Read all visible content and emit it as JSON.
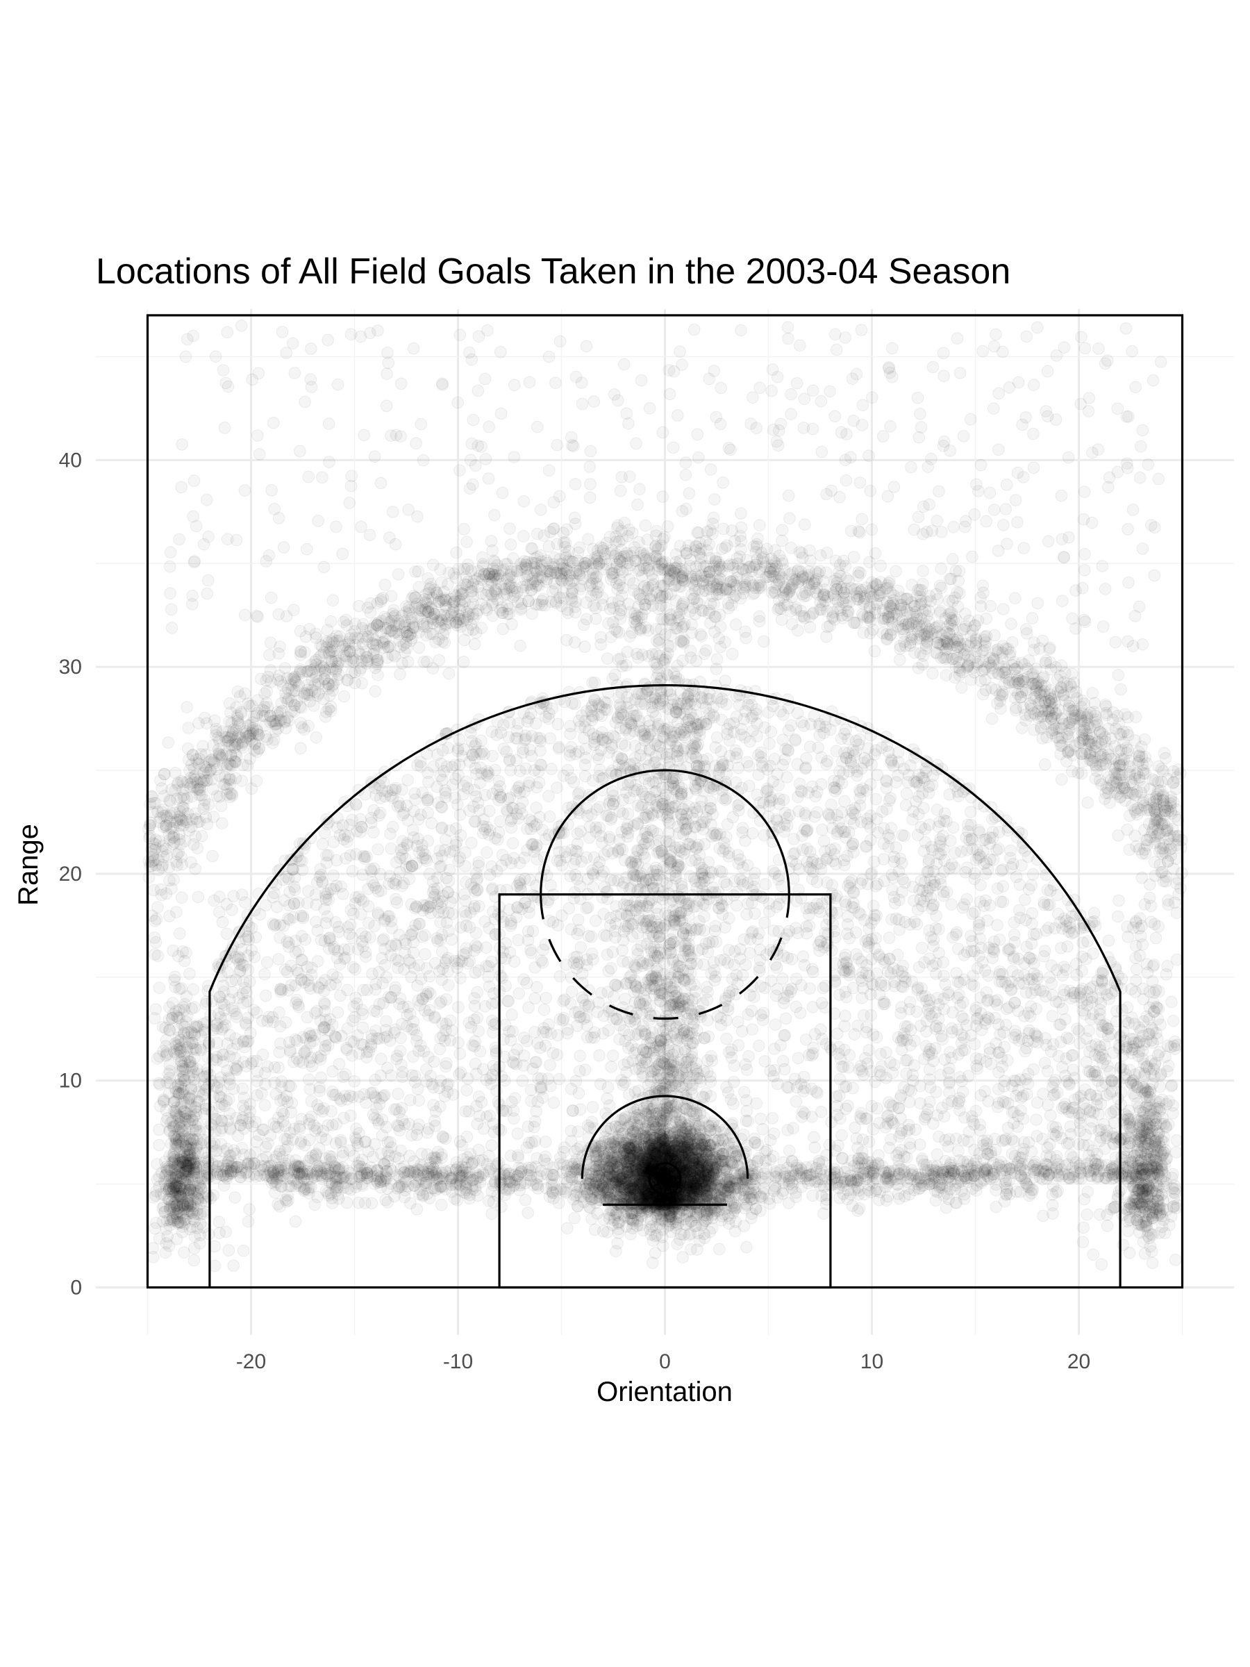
{
  "chart_data": {
    "type": "scatter",
    "title": "Locations of All Field Goals Taken in the 2003-04 Season",
    "xlabel": "Orientation",
    "ylabel": "Range",
    "xlim": [
      -27.5,
      27.5
    ],
    "ylim": [
      -2.3,
      47.3
    ],
    "x_ticks": [
      -20,
      -10,
      0,
      10,
      20
    ],
    "y_ticks": [
      0,
      10,
      20,
      30,
      40
    ],
    "x_tick_labels": [
      "-20",
      "-10",
      "0",
      "10",
      "20"
    ],
    "y_tick_labels": [
      "0",
      "10",
      "20",
      "30",
      "40"
    ],
    "grid": true,
    "legend": "none",
    "point_color": "#000000",
    "point_alpha": 0.04,
    "density_regions": [
      {
        "region": "three-point arc band",
        "center": [
          0,
          5.25
        ],
        "radius_range": [
          28.8,
          31.2
        ],
        "relative_density": "high"
      },
      {
        "region": "left corner three",
        "x": -23.3,
        "y_range": [
          2.5,
          14
        ],
        "relative_density": "high"
      },
      {
        "region": "right corner three",
        "x": 23.3,
        "y_range": [
          2.5,
          14
        ],
        "relative_density": "high"
      },
      {
        "region": "around the rim",
        "x_range": [
          -3.5,
          3.5
        ],
        "y_range": [
          4,
          8
        ],
        "relative_density": "very high"
      },
      {
        "region": "center lane",
        "x": 0,
        "y_range": [
          4,
          34
        ],
        "relative_density": "medium"
      },
      {
        "region": "baseline mid-range",
        "y": 5.2,
        "x_range": [
          -18,
          18
        ],
        "relative_density": "medium"
      },
      {
        "region": "mid-range interior",
        "center": [
          0,
          5.25
        ],
        "radius_range": [
          4,
          23.5
        ],
        "relative_density": "medium"
      },
      {
        "region": "backcourt",
        "x_range": [
          -24,
          24
        ],
        "y_range": [
          31,
          46
        ],
        "relative_density": "low"
      }
    ],
    "court": {
      "outer_boundary": {
        "x": [
          -25,
          25
        ],
        "y": [
          0,
          47
        ]
      },
      "three_point_corners": {
        "x": [
          -22,
          22
        ],
        "y_range": [
          0,
          14.3
        ]
      },
      "three_point_arc": {
        "center": [
          0,
          5.25
        ],
        "radius": 23.75
      },
      "paint": {
        "x": [
          -8,
          8
        ],
        "y": [
          0,
          19
        ]
      },
      "free_throw_circle": {
        "center": [
          0,
          19
        ],
        "radius": 6,
        "lower_half": "dashed"
      },
      "restricted_arc": {
        "center": [
          0,
          5.25
        ],
        "radius": 4
      },
      "hoop": {
        "center": [
          0,
          5.25
        ],
        "radius": 0.75
      },
      "backboard": {
        "x": [
          -3,
          3
        ],
        "y": 4
      }
    }
  }
}
